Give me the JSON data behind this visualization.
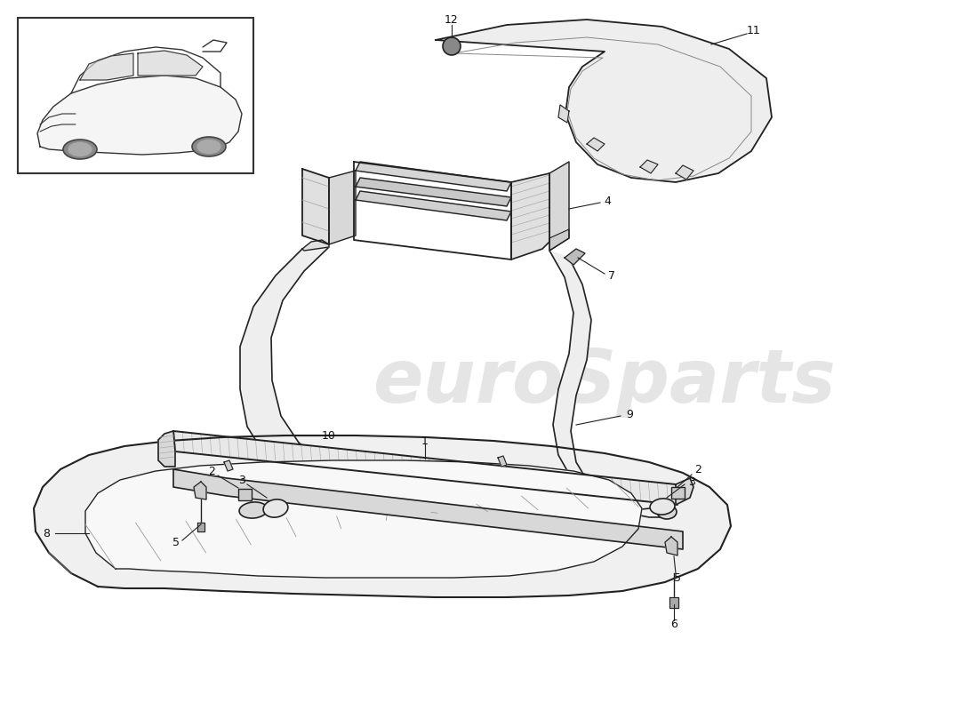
{
  "background_color": "#ffffff",
  "line_color": "#222222",
  "fill_light": "#f0f0f0",
  "fill_mid": "#e0e0e0",
  "fill_dark": "#cccccc",
  "watermark_text_color": "#d8d8d8",
  "watermark_year_color": "#d8d800",
  "figsize": [
    11.0,
    8.0
  ],
  "dpi": 100
}
